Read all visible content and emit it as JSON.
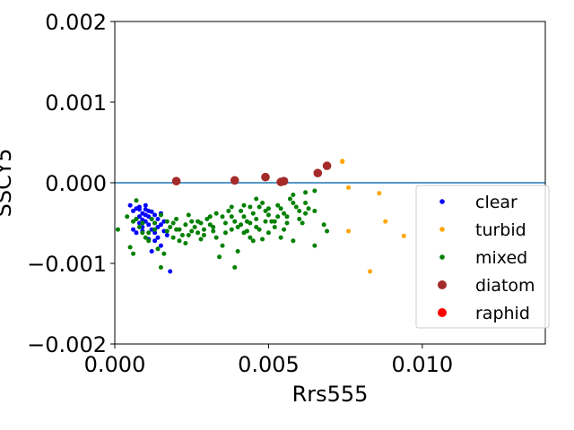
{
  "chart_data": {
    "type": "scatter",
    "xlabel": "Rrs555",
    "ylabel": "SSCY5",
    "xlim": [
      0.0,
      0.014
    ],
    "ylim": [
      -0.002,
      0.002
    ],
    "x_ticks": [
      0.0,
      0.005,
      0.01
    ],
    "x_tick_labels": [
      "0.000",
      "0.005",
      "0.010"
    ],
    "y_ticks": [
      -0.002,
      -0.001,
      0.0,
      0.001,
      0.002
    ],
    "y_tick_labels": [
      "−0.002",
      "−0.001",
      "0.000",
      "0.001",
      "0.002"
    ],
    "grid": false,
    "legend_position": "lower-right",
    "reference_line": {
      "y": 0.0,
      "color": "#1f77b4"
    },
    "series": [
      {
        "name": "clear",
        "color": "#0000ff",
        "marker_size": "small",
        "points": [
          [
            0.0005,
            -0.00028
          ],
          [
            0.0006,
            -0.00035
          ],
          [
            0.0007,
            -0.00032
          ],
          [
            0.0008,
            -0.0003
          ],
          [
            0.0009,
            -0.00038
          ],
          [
            0.001,
            -0.00033
          ],
          [
            0.0011,
            -0.00042
          ],
          [
            0.0012,
            -0.00036
          ],
          [
            0.0013,
            -0.0004
          ],
          [
            0.0014,
            -0.00045
          ],
          [
            0.0015,
            -0.00038
          ],
          [
            0.0016,
            -0.00048
          ],
          [
            0.0007,
            -0.00045
          ],
          [
            0.0008,
            -0.0005
          ],
          [
            0.0009,
            -0.00055
          ],
          [
            0.001,
            -0.00048
          ],
          [
            0.0011,
            -0.00052
          ],
          [
            0.0012,
            -0.00058
          ],
          [
            0.0013,
            -0.00062
          ],
          [
            0.0014,
            -0.00055
          ],
          [
            0.0006,
            -0.00058
          ],
          [
            0.0007,
            -0.00062
          ],
          [
            0.0008,
            -0.00042
          ],
          [
            0.0009,
            -0.00046
          ],
          [
            0.001,
            -0.0004
          ],
          [
            0.0012,
            -0.00045
          ],
          [
            0.0013,
            -0.0005
          ],
          [
            0.0015,
            -0.00052
          ],
          [
            0.0016,
            -0.0006
          ],
          [
            0.0017,
            -0.00065
          ],
          [
            0.0011,
            -0.0007
          ],
          [
            0.0013,
            -0.00072
          ],
          [
            0.0014,
            -0.00068
          ],
          [
            0.0012,
            -0.00085
          ],
          [
            0.0015,
            -0.00078
          ],
          [
            0.0018,
            -0.0011
          ],
          [
            0.0009,
            -0.0006
          ],
          [
            0.0011,
            -0.00035
          ],
          [
            0.001,
            -0.00028
          ],
          [
            0.0008,
            -0.00033
          ]
        ]
      },
      {
        "name": "turbid",
        "color": "#ffa500",
        "marker_size": "small",
        "points": [
          [
            0.0074,
            0.00027
          ],
          [
            0.0076,
            -6e-05
          ],
          [
            0.0086,
            -0.00013
          ],
          [
            0.0076,
            -0.0006
          ],
          [
            0.0088,
            -0.00048
          ],
          [
            0.0094,
            -0.00066
          ],
          [
            0.0083,
            -0.0011
          ],
          [
            0.0074,
            0.00026
          ]
        ]
      },
      {
        "name": "mixed",
        "color": "#008000",
        "marker_size": "small",
        "points": [
          [
            0.0001,
            -0.00058
          ],
          [
            0.0004,
            -0.00042
          ],
          [
            0.0006,
            -0.00048
          ],
          [
            0.0005,
            -0.0008
          ],
          [
            0.0006,
            -0.00088
          ],
          [
            0.0007,
            -0.00022
          ],
          [
            0.0008,
            -0.00055
          ],
          [
            0.0009,
            -0.00062
          ],
          [
            0.001,
            -0.00068
          ],
          [
            0.0011,
            -0.00072
          ],
          [
            0.0012,
            -0.00045
          ],
          [
            0.0013,
            -0.0005
          ],
          [
            0.0014,
            -0.00082
          ],
          [
            0.0015,
            -0.00105
          ],
          [
            0.0016,
            -0.00088
          ],
          [
            0.0017,
            -0.0006
          ],
          [
            0.0018,
            -0.00055
          ],
          [
            0.0019,
            -0.0005
          ],
          [
            0.002,
            -0.00045
          ],
          [
            0.0021,
            -0.00058
          ],
          [
            0.0022,
            -0.00065
          ],
          [
            0.0023,
            -0.00052
          ],
          [
            0.0024,
            -0.0004
          ],
          [
            0.0025,
            -0.00048
          ],
          [
            0.0026,
            -0.00055
          ],
          [
            0.0027,
            -0.00062
          ],
          [
            0.0028,
            -0.0007
          ],
          [
            0.0029,
            -0.00058
          ],
          [
            0.003,
            -0.00045
          ],
          [
            0.0031,
            -0.00052
          ],
          [
            0.0032,
            -0.0006
          ],
          [
            0.0033,
            -0.00068
          ],
          [
            0.0034,
            -0.00092
          ],
          [
            0.0035,
            -0.00078
          ],
          [
            0.0036,
            -0.0005
          ],
          [
            0.0037,
            -0.00035
          ],
          [
            0.0038,
            -0.00042
          ],
          [
            0.0039,
            -0.00048
          ],
          [
            0.004,
            -0.00055
          ],
          [
            0.0041,
            -0.00035
          ],
          [
            0.0042,
            -0.00042
          ],
          [
            0.0043,
            -0.00048
          ],
          [
            0.0044,
            -0.0005
          ],
          [
            0.0045,
            -0.00038
          ],
          [
            0.0046,
            -0.00045
          ],
          [
            0.0047,
            -0.0003
          ],
          [
            0.0048,
            -0.00025
          ],
          [
            0.0049,
            -0.00035
          ],
          [
            0.005,
            -0.0004
          ],
          [
            0.0051,
            -0.00048
          ],
          [
            0.0052,
            -0.00055
          ],
          [
            0.0053,
            -0.00028
          ],
          [
            0.0054,
            -0.00032
          ],
          [
            0.0055,
            -0.00038
          ],
          [
            0.0056,
            -0.00042
          ],
          [
            0.0057,
            -0.0002
          ],
          [
            0.0058,
            -0.00025
          ],
          [
            0.0059,
            -0.0003
          ],
          [
            0.006,
            -0.00045
          ],
          [
            0.0061,
            -0.0005
          ],
          [
            0.0062,
            -0.00025
          ],
          [
            0.0063,
            -0.00032
          ],
          [
            0.0065,
            -0.00035
          ],
          [
            0.0065,
            -0.0001
          ],
          [
            0.0065,
            -0.00078
          ],
          [
            0.0068,
            -0.00052
          ],
          [
            0.0069,
            -0.0006
          ],
          [
            0.0058,
            -0.00072
          ],
          [
            0.0054,
            -0.00068
          ],
          [
            0.005,
            -0.00062
          ],
          [
            0.0045,
            -0.00072
          ],
          [
            0.004,
            -0.00085
          ],
          [
            0.0039,
            -0.00105
          ],
          [
            0.0043,
            -0.0006
          ],
          [
            0.0047,
            -0.00058
          ],
          [
            0.0044,
            -0.00068
          ],
          [
            0.0048,
            -0.0007
          ],
          [
            0.0052,
            -0.00048
          ],
          [
            0.0055,
            -0.00058
          ],
          [
            0.0035,
            -0.00042
          ],
          [
            0.0033,
            -0.00038
          ],
          [
            0.0031,
            -0.00042
          ],
          [
            0.0029,
            -0.00065
          ],
          [
            0.0027,
            -0.00048
          ],
          [
            0.0025,
            -0.0006
          ],
          [
            0.0023,
            -0.00075
          ],
          [
            0.0021,
            -0.00072
          ],
          [
            0.0019,
            -0.00068
          ],
          [
            0.0017,
            -0.00048
          ],
          [
            0.0015,
            -0.0004
          ],
          [
            0.0013,
            -0.00058
          ],
          [
            0.0011,
            -0.00062
          ],
          [
            0.0009,
            -0.0005
          ],
          [
            0.0007,
            -0.00045
          ],
          [
            0.002,
            -0.00058
          ],
          [
            0.0024,
            -0.00065
          ],
          [
            0.0028,
            -0.0005
          ],
          [
            0.0032,
            -0.00055
          ],
          [
            0.0036,
            -0.00062
          ],
          [
            0.0038,
            -0.00058
          ],
          [
            0.0041,
            -0.00052
          ],
          [
            0.0042,
            -0.00062
          ],
          [
            0.0046,
            -0.00055
          ],
          [
            0.0049,
            -0.00048
          ],
          [
            0.0053,
            -0.00042
          ],
          [
            0.0056,
            -0.0005
          ],
          [
            0.006,
            -0.00035
          ],
          [
            0.0062,
            -0.00038
          ],
          [
            0.0044,
            -0.0003
          ],
          [
            0.0046,
            -0.0002
          ],
          [
            0.0058,
            -0.00015
          ],
          [
            0.0062,
            -0.00012
          ],
          [
            0.0038,
            -0.0003
          ],
          [
            0.0042,
            -0.00028
          ],
          [
            0.005,
            -0.00032
          ]
        ]
      },
      {
        "name": "diatom",
        "color": "#a52a2a",
        "marker_size": "large",
        "points": [
          [
            0.002,
            2e-05
          ],
          [
            0.0039,
            3e-05
          ],
          [
            0.0049,
            7e-05
          ],
          [
            0.0054,
            1e-05
          ],
          [
            0.0055,
            2e-05
          ],
          [
            0.0066,
            0.00012
          ],
          [
            0.0069,
            0.00021
          ]
        ]
      },
      {
        "name": "raphid",
        "color": "#ff0000",
        "marker_size": "large",
        "points": []
      }
    ]
  }
}
